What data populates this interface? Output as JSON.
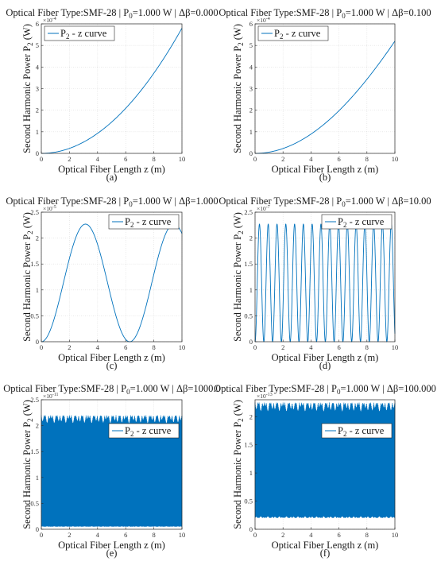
{
  "figure": {
    "axis_x_label": "Optical Fiber Length z (m)",
    "axis_y_label": "Second Harmonic Power  P",
    "axis_y_sub": "2",
    "axis_y_unit": " (W)",
    "legend_prefix": "P",
    "legend_sub": "2",
    "legend_suffix": " - z curve",
    "line_color": "#0072BD"
  },
  "chart_data": [
    {
      "type": "line",
      "caption": "(a)",
      "title": {
        "pre": "Optical Fiber Type:SMF-28 | P",
        "sub": "0",
        "post": "=1.000 W | Δβ=0.000"
      },
      "model": "z2",
      "peak": 0.00058,
      "y_multiplier": "×10",
      "y_multiplier_exp": "-4",
      "xlim": [
        0,
        10
      ],
      "ylim": [
        0,
        0.0006
      ],
      "x_ticks": [
        0,
        2,
        4,
        6,
        8,
        10
      ],
      "y_ticks": [
        "0",
        "1",
        "2",
        "3",
        "4",
        "5",
        "6"
      ],
      "legend_pos": "top-left"
    },
    {
      "type": "line",
      "caption": "(b)",
      "title": {
        "pre": "Optical Fiber Type:SMF-28 | P",
        "sub": "0",
        "post": "=1.000 W | Δβ=0.100"
      },
      "model": "sin2",
      "dbeta": 0.1,
      "peak": 0.00052,
      "y_multiplier": "×10",
      "y_multiplier_exp": "-4",
      "xlim": [
        0,
        10
      ],
      "ylim": [
        0,
        0.0006
      ],
      "x_ticks": [
        0,
        2,
        4,
        6,
        8,
        10
      ],
      "y_ticks": [
        "0",
        "1",
        "2",
        "3",
        "4",
        "5",
        "6"
      ],
      "legend_pos": "top-left"
    },
    {
      "type": "line",
      "caption": "(c)",
      "title": {
        "pre": "Optical Fiber Type:SMF-28 | P",
        "sub": "0",
        "post": "=1.000 W | Δβ=1.000"
      },
      "model": "sin2",
      "dbeta": 1.0,
      "peak": 2.27e-05,
      "y_multiplier": "×10",
      "y_multiplier_exp": "-5",
      "xlim": [
        0,
        10
      ],
      "ylim": [
        0,
        2.5e-05
      ],
      "x_ticks": [
        0,
        2,
        4,
        6,
        8,
        10
      ],
      "y_ticks": [
        "0",
        "0.5",
        "1",
        "1.5",
        "2",
        "2.5"
      ],
      "legend_pos": "top-right"
    },
    {
      "type": "line",
      "caption": "(d)",
      "title": {
        "pre": "Optical Fiber Type:SMF-28 | P",
        "sub": "0",
        "post": "=1.000 W | Δβ=10.00"
      },
      "model": "sin2",
      "dbeta": 10.0,
      "peak": 2.27e-07,
      "y_multiplier": "×10",
      "y_multiplier_exp": "-7",
      "xlim": [
        0,
        10
      ],
      "ylim": [
        0,
        2.5e-07
      ],
      "x_ticks": [
        0,
        2,
        4,
        6,
        8,
        10
      ],
      "y_ticks": [
        "0",
        "0.5",
        "1",
        "1.5",
        "2",
        "2.5"
      ],
      "legend_pos": "top-right"
    },
    {
      "type": "line",
      "caption": "(e)",
      "title": {
        "pre": "Optical Fiber Type:SMF-28 | P",
        "sub": "0",
        "post": "=1.000 W | Δβ=1000.0"
      },
      "model": "alias",
      "band_top": 2.2e-11,
      "band_bottom": 5e-13,
      "y_multiplier": "×10",
      "y_multiplier_exp": "-11",
      "xlim": [
        0,
        10
      ],
      "ylim": [
        0,
        2.5e-11
      ],
      "x_ticks": [
        0,
        2,
        4,
        6,
        8,
        10
      ],
      "y_ticks": [
        "0",
        "0.5",
        "1",
        "1.5",
        "2",
        "2.5"
      ],
      "legend_pos": "right"
    },
    {
      "type": "line",
      "caption": "(f)",
      "title": {
        "pre": "Optical Fiber Type:SMF-28 | P",
        "sub": "0",
        "post": "=1.000 W | Δβ=100.000"
      },
      "model": "alias",
      "band_top": 2.25e-13,
      "band_bottom": 2e-14,
      "y_multiplier": "×10",
      "y_multiplier_exp": "-13",
      "xlim": [
        0,
        10
      ],
      "ylim": [
        0,
        2.3e-13
      ],
      "x_ticks": [
        0,
        2,
        4,
        6,
        8,
        10
      ],
      "y_ticks": [
        "0",
        "0.5",
        "1",
        "1.5",
        "2"
      ],
      "legend_pos": "right"
    }
  ]
}
